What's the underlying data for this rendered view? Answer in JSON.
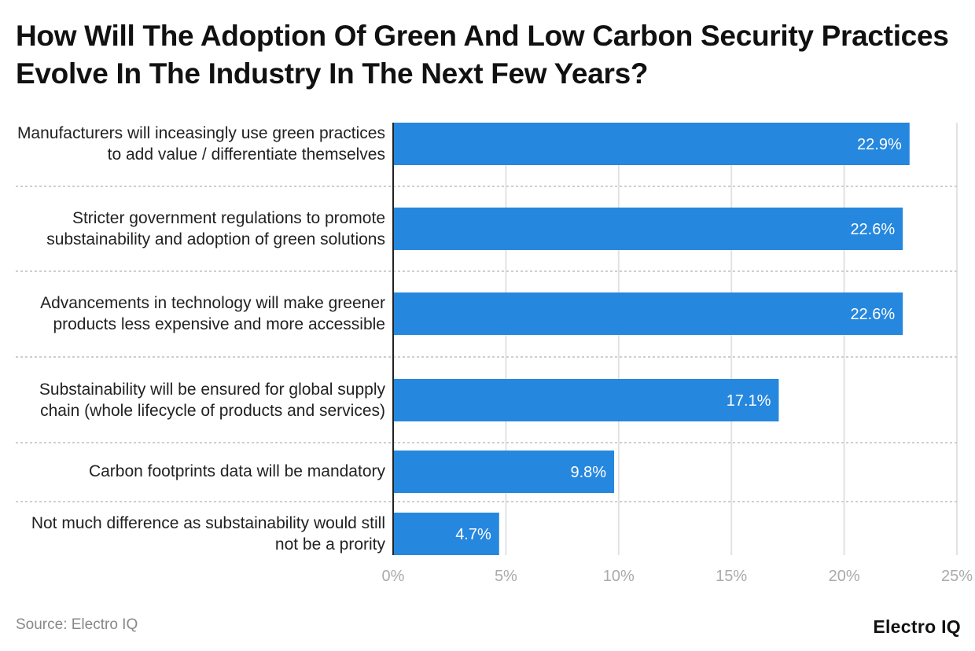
{
  "chart_data": {
    "type": "bar",
    "orientation": "horizontal",
    "title": "How Will The Adoption Of Green And Low Carbon Security Practices Evolve In The Industry In The Next Few Years?",
    "categories": [
      "Manufacturers will inceasingly use green practices to add value / differentiate themselves",
      "Stricter government regulations to promote substainability and adoption of green solutions",
      "Advancements in technology will make greener products less expensive and more accessible",
      "Substainability will be ensured for global supply chain (whole lifecycle of products and services)",
      "Carbon footprints data will be mandatory",
      "Not much difference as substainability would still not be a prority"
    ],
    "values": [
      22.9,
      22.6,
      22.6,
      17.1,
      9.8,
      4.7
    ],
    "data_labels": [
      "22.9%",
      "22.6%",
      "22.6%",
      "17.1%",
      "9.8%",
      "4.7%"
    ],
    "xlim": [
      0,
      25
    ],
    "x_ticks": [
      "0%",
      "5%",
      "10%",
      "15%",
      "20%",
      "25%"
    ],
    "grid": true,
    "bar_color": "#2687de"
  },
  "footer": {
    "source": "Source: Electro IQ",
    "logo": "Electro IQ"
  }
}
